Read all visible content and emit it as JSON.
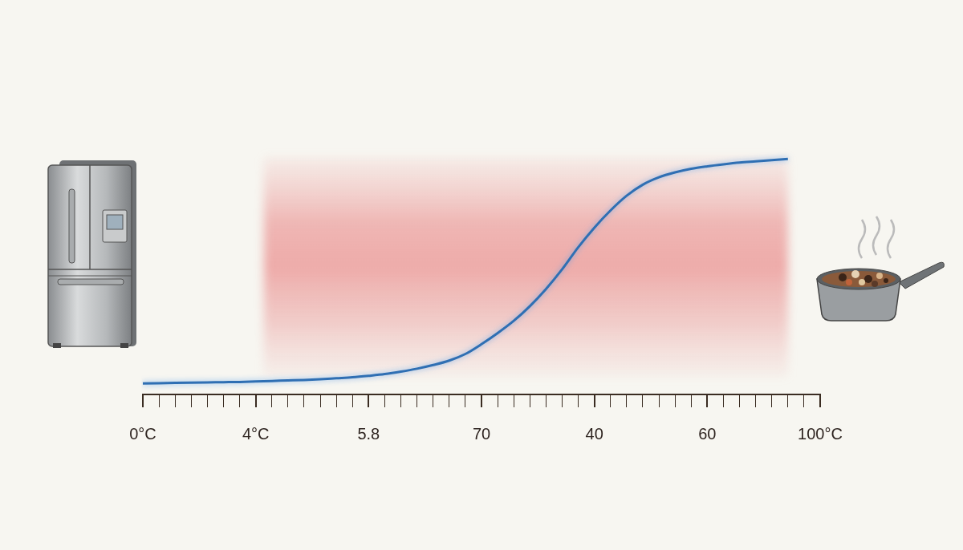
{
  "chart_data": {
    "type": "line",
    "categories": [
      "0°C",
      null,
      null,
      null,
      null,
      null,
      null,
      "4°C",
      null,
      null,
      null,
      null,
      null,
      null,
      "5.8",
      null,
      null,
      null,
      null,
      null,
      null,
      "70",
      null,
      null,
      null,
      null,
      null,
      null,
      "40",
      null,
      null,
      null,
      null,
      null,
      null,
      "60",
      null,
      null,
      null,
      null,
      null,
      null,
      "100°C"
    ],
    "values": [
      4.5,
      4.6,
      4.7,
      4.8,
      4.9,
      5.0,
      5.1,
      5.3,
      5.5,
      5.7,
      5.9,
      6.2,
      6.6,
      7.0,
      7.6,
      8.3,
      9.3,
      10.5,
      12.0,
      13.8,
      16.5,
      20.5,
      25,
      30,
      36,
      43,
      51,
      60,
      68,
      75,
      81,
      85.5,
      88.5,
      90.5,
      92,
      93,
      93.8,
      94.5,
      95,
      95.5,
      96,
      null,
      null
    ],
    "color": "#2f6fb3",
    "ylim": [
      0,
      100
    ],
    "tick_labels": "x",
    "grid": false,
    "band": [
      7.5,
      40
    ]
  }
}
